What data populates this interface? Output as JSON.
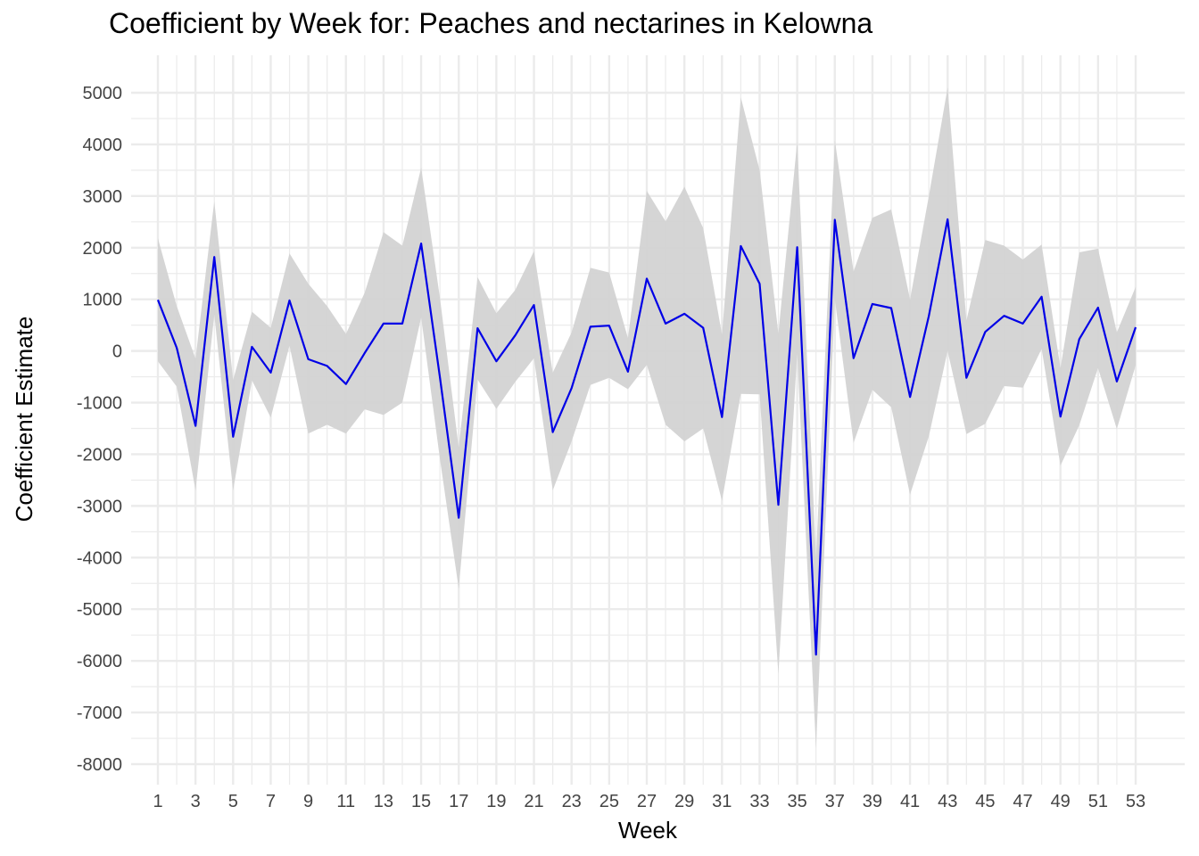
{
  "chart_data": {
    "type": "line",
    "title": "Coefficient by Week for: Peaches and nectarines in Kelowna",
    "xlabel": "Week",
    "ylabel": "Coefficient Estimate",
    "xlim": [
      1,
      53
    ],
    "ylim": [
      -8000,
      5000
    ],
    "x_ticks": [
      1,
      3,
      5,
      7,
      9,
      11,
      13,
      15,
      17,
      19,
      21,
      23,
      25,
      27,
      29,
      31,
      33,
      35,
      37,
      39,
      41,
      43,
      45,
      47,
      49,
      51,
      53
    ],
    "y_ticks": [
      5000,
      4000,
      3000,
      2000,
      1000,
      0,
      -1000,
      -2000,
      -3000,
      -4000,
      -5000,
      -6000,
      -7000,
      -8000
    ],
    "grid": true,
    "legend": "none",
    "colors": {
      "line": "#0000e6",
      "band": "#d3d3d3",
      "grid": "#ebebeb"
    },
    "series": [
      {
        "x": [
          1,
          2,
          3,
          4,
          5,
          6,
          7,
          8,
          9,
          10,
          11,
          12,
          13,
          14,
          15,
          16,
          17,
          18,
          19,
          20,
          21,
          22,
          23,
          24,
          25,
          26,
          27,
          28,
          29,
          30,
          31,
          32,
          33,
          34,
          35,
          36,
          37,
          38,
          39,
          40,
          41,
          42,
          43,
          44,
          45,
          46,
          47,
          48,
          49,
          50,
          51,
          52,
          53
        ],
        "y": [
          990,
          60,
          -1450,
          1820,
          -1660,
          80,
          -420,
          980,
          -160,
          -290,
          -640,
          -40,
          530,
          530,
          2080,
          -520,
          -3230,
          440,
          -200,
          300,
          890,
          -1570,
          -720,
          470,
          490,
          -400,
          1400,
          530,
          720,
          450,
          -1280,
          2030,
          1300,
          -2980,
          2010,
          -5880,
          2540,
          -140,
          910,
          830,
          -890,
          680,
          2550,
          -520,
          370,
          680,
          530,
          1050,
          -1270,
          230,
          840,
          -590,
          460
        ],
        "ci_upper": [
          2180,
          870,
          -150,
          2900,
          -560,
          760,
          450,
          1890,
          1300,
          870,
          330,
          1130,
          2300,
          2040,
          3550,
          1020,
          -1870,
          1430,
          730,
          1180,
          1930,
          -420,
          360,
          1610,
          1520,
          250,
          3100,
          2510,
          3180,
          2380,
          320,
          4910,
          3500,
          340,
          4050,
          -4000,
          4080,
          1540,
          2580,
          2740,
          1000,
          3000,
          5100,
          590,
          2150,
          2040,
          1770,
          2060,
          -330,
          1910,
          1980,
          360,
          1240
        ],
        "ci_lower": [
          -200,
          -690,
          -2700,
          700,
          -2700,
          -570,
          -1290,
          100,
          -1600,
          -1430,
          -1600,
          -1130,
          -1240,
          -1000,
          650,
          -2100,
          -4600,
          -550,
          -1120,
          -600,
          -140,
          -2700,
          -1750,
          -660,
          -520,
          -740,
          -270,
          -1430,
          -1750,
          -1500,
          -2900,
          -830,
          -840,
          -6250,
          -40,
          -7700,
          1000,
          -1780,
          -750,
          -1090,
          -2780,
          -1650,
          0,
          -1610,
          -1410,
          -680,
          -710,
          40,
          -2220,
          -1440,
          -330,
          -1510,
          -280
        ]
      }
    ]
  }
}
